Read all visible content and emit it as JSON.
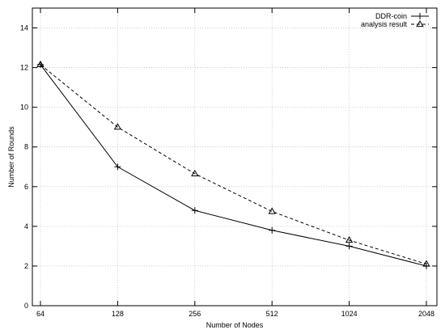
{
  "chart_data": {
    "type": "line",
    "categories": [
      "64",
      "128",
      "256",
      "512",
      "1024",
      "2048"
    ],
    "xlabel": "Number of Nodes",
    "ylabel": "Number of Rounds",
    "ylim": [
      0,
      15
    ],
    "yticks": [
      0,
      2,
      4,
      6,
      8,
      10,
      12,
      14
    ],
    "grid": true,
    "legend_position": "top-right",
    "series": [
      {
        "name": "DDR-coin",
        "values": [
          12.15,
          7.0,
          4.8,
          3.8,
          3.0,
          2.0
        ],
        "line_style": "solid",
        "marker": "plus",
        "color": "#000000"
      },
      {
        "name": "analysis result",
        "values": [
          12.15,
          9.0,
          6.65,
          4.75,
          3.3,
          2.1
        ],
        "line_style": "dashed",
        "marker": "triangle",
        "color": "#000000"
      }
    ]
  }
}
